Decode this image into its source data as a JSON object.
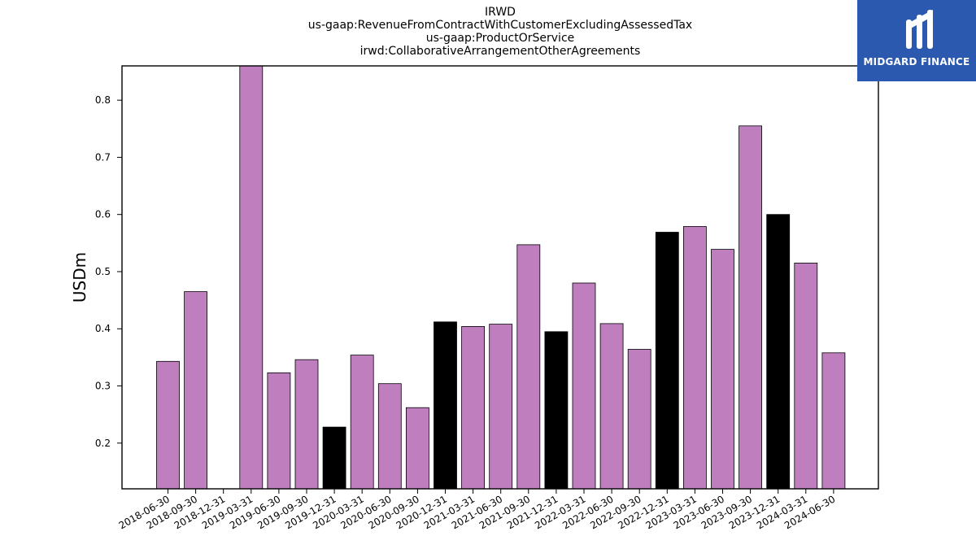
{
  "logo": {
    "text": "MIDGARD FINANCE",
    "color": "#2b59b0"
  },
  "chart_data": {
    "type": "bar",
    "title_lines": [
      "IRWD",
      "us-gaap:RevenueFromContractWithCustomerExcludingAssessedTax",
      "us-gaap:ProductOrService",
      "irwd:CollaborativeArrangementOtherAgreements"
    ],
    "xlabel": "",
    "ylabel": "USDm",
    "ylim": [
      0.12,
      0.86
    ],
    "yticks": [
      0.2,
      0.3,
      0.4,
      0.5,
      0.6,
      0.7,
      0.8
    ],
    "ytick_labels": [
      "0.2",
      "0.3",
      "0.4",
      "0.5",
      "0.6",
      "0.7",
      "0.8"
    ],
    "grid": false,
    "colors": {
      "quarter": "#bf7fbf",
      "year_end": "#000000"
    },
    "categories": [
      "2018-06-30",
      "2018-09-30",
      "2018-12-31",
      "2019-03-31",
      "2019-06-30",
      "2019-09-30",
      "2019-12-31",
      "2020-03-31",
      "2020-06-30",
      "2020-09-30",
      "2020-12-31",
      "2021-03-31",
      "2021-06-30",
      "2021-09-30",
      "2021-12-31",
      "2022-03-31",
      "2022-06-30",
      "2022-09-30",
      "2022-12-31",
      "2023-03-31",
      "2023-06-30",
      "2023-09-30",
      "2023-12-31",
      "2024-03-31",
      "2024-06-30"
    ],
    "values": [
      0.343,
      0.465,
      null,
      0.87,
      0.323,
      0.346,
      0.228,
      0.354,
      0.304,
      0.262,
      0.412,
      0.404,
      0.408,
      0.547,
      0.395,
      0.48,
      0.409,
      0.364,
      0.569,
      0.579,
      0.539,
      0.755,
      0.6,
      0.515,
      0.358
    ],
    "year_end": [
      false,
      false,
      false,
      false,
      false,
      false,
      true,
      false,
      false,
      false,
      true,
      false,
      false,
      false,
      true,
      false,
      false,
      false,
      true,
      false,
      false,
      false,
      true,
      false,
      false
    ]
  }
}
